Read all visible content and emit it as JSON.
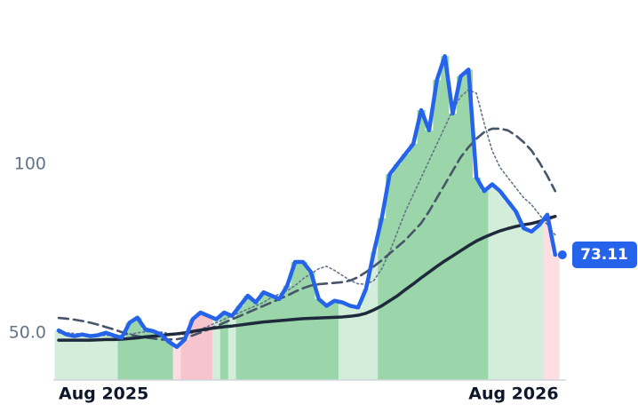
{
  "chart_data": {
    "type": "line",
    "categories": [
      "Aug 2025",
      null,
      null,
      null,
      null,
      null,
      null,
      null,
      null,
      null,
      null,
      null,
      null,
      null,
      null,
      null,
      null,
      null,
      null,
      null,
      null,
      null,
      null,
      null,
      null,
      null,
      null,
      null,
      null,
      null,
      null,
      null,
      null,
      null,
      null,
      null,
      null,
      null,
      null,
      null,
      null,
      null,
      null,
      null,
      null,
      null,
      null,
      null,
      null,
      null,
      null,
      null,
      "Aug 2026",
      null,
      null,
      null,
      null,
      null,
      null,
      null,
      null,
      null,
      null,
      null
    ],
    "series": [
      {
        "color": "#2563eb",
        "values": [
          50.7,
          49.5,
          49,
          49.5,
          49,
          49.3,
          50,
          49.2,
          48.5,
          53,
          54.5,
          51,
          50.5,
          49.5,
          47.3,
          45.8,
          48,
          54,
          56,
          55,
          54,
          56,
          55,
          58,
          61,
          59,
          62,
          61,
          60,
          64,
          71,
          71,
          68,
          60,
          58,
          59.5,
          59,
          58,
          57.5,
          63,
          74,
          84,
          97,
          100,
          103,
          106,
          116,
          110,
          125,
          132,
          115,
          126,
          128,
          96,
          92,
          94,
          92,
          89,
          86,
          81,
          80,
          82,
          85,
          73.11
        ]
      },
      {
        "color": "#64748b",
        "values": [
          50,
          50,
          49.8,
          49.6,
          49.4,
          49.2,
          49.2,
          49.2,
          49.3,
          49.6,
          50,
          50.3,
          50.4,
          50.2,
          49.8,
          49.5,
          49.5,
          50,
          51,
          52,
          53,
          54,
          55,
          56,
          57,
          58,
          59,
          60.5,
          61.5,
          62.5,
          64,
          66,
          67.5,
          69,
          69.7,
          68.5,
          67,
          65.5,
          64.5,
          64.4,
          65.5,
          69,
          74,
          80,
          86,
          91,
          96,
          101,
          106,
          111,
          116,
          120,
          122,
          121,
          112,
          104,
          99,
          96,
          93,
          90,
          88,
          85,
          82,
          79
        ]
      },
      {
        "color": "#475569",
        "values": [
          54.4,
          54.2,
          53.9,
          53.5,
          53,
          52.4,
          51.7,
          51,
          50.2,
          49.5,
          49,
          48.6,
          48.3,
          48,
          48,
          48.1,
          48.5,
          49.2,
          50.1,
          51,
          52,
          53,
          54,
          55,
          56,
          57,
          58,
          59,
          60,
          61,
          62.2,
          63.2,
          64,
          64.4,
          64.6,
          64.8,
          65,
          65.5,
          66.5,
          68,
          69.7,
          71.5,
          73.5,
          75.5,
          77.5,
          80,
          82.5,
          86,
          90,
          94,
          98,
          102,
          105,
          107.5,
          109.5,
          110.5,
          110.5,
          110,
          108.5,
          106.5,
          104,
          100.5,
          96.5,
          92
        ]
      },
      {
        "color": "#1e293b",
        "values": [
          47.8,
          47.8,
          47.8,
          47.8,
          47.8,
          47.9,
          48,
          48,
          48.1,
          48.3,
          48.5,
          48.8,
          49,
          49.2,
          49.5,
          49.7,
          50,
          50.4,
          50.8,
          51.2,
          51.5,
          51.8,
          52,
          52.3,
          52.6,
          52.9,
          53.2,
          53.4,
          53.6,
          53.8,
          54,
          54.2,
          54.3,
          54.4,
          54.5,
          54.6,
          54.7,
          54.9,
          55.2,
          55.8,
          56.8,
          58,
          59.5,
          61,
          62.8,
          64.5,
          66.3,
          68,
          69.7,
          71.3,
          72.8,
          74.3,
          75.8,
          77.2,
          78.3,
          79.3,
          80.2,
          80.9,
          81.5,
          82,
          82.4,
          83,
          83.8,
          84.5
        ]
      }
    ],
    "bar_colors": [
      "#d3eddb",
      "#d3eddb",
      "#d3eddb",
      "#d3eddb",
      "#d3eddb",
      "#d3eddb",
      "#d3eddb",
      "#d3eddb",
      "#9ad6a9",
      "#9ad6a9",
      "#9ad6a9",
      "#9ad6a9",
      "#9ad6a9",
      "#9ad6a9",
      "#9ad6a9",
      "#fcdde2",
      "#f7c4cd",
      "#f7c4cd",
      "#f7c4cd",
      "#f7c4cd",
      "#d3eddb",
      "#9ad6a9",
      "#d3eddb",
      "#9ad6a9",
      "#9ad6a9",
      "#9ad6a9",
      "#9ad6a9",
      "#9ad6a9",
      "#9ad6a9",
      "#9ad6a9",
      "#9ad6a9",
      "#9ad6a9",
      "#9ad6a9",
      "#9ad6a9",
      "#9ad6a9",
      "#9ad6a9",
      "#d3eddb",
      "#d3eddb",
      "#d3eddb",
      "#d3eddb",
      "#d3eddb",
      "#9ad6a9",
      "#9ad6a9",
      "#9ad6a9",
      "#9ad6a9",
      "#9ad6a9",
      "#9ad6a9",
      "#9ad6a9",
      "#9ad6a9",
      "#9ad6a9",
      "#9ad6a9",
      "#9ad6a9",
      "#9ad6a9",
      "#9ad6a9",
      "#9ad6a9",
      "#d3eddb",
      "#d3eddb",
      "#d3eddb",
      "#d3eddb",
      "#d3eddb",
      "#d3eddb",
      "#d3eddb",
      "#fcdde2",
      "#fcdde2"
    ],
    "ylim": [
      36,
      140
    ],
    "yticks": [
      {
        "value": 50,
        "label": "50.0"
      },
      100
    ],
    "grid": false
  }
}
